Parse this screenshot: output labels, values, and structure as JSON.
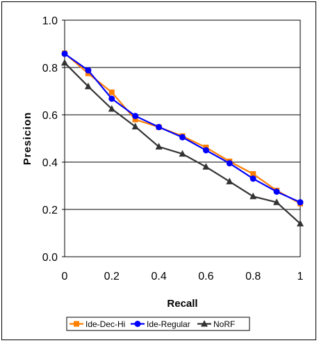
{
  "chart_data": {
    "type": "line",
    "title": "",
    "xlabel": "Recall",
    "ylabel": "Presicion",
    "x": [
      0,
      0.1,
      0.2,
      0.3,
      0.4,
      0.5,
      0.6,
      0.7,
      0.8,
      0.9,
      1
    ],
    "xlim": [
      0,
      1
    ],
    "ylim": [
      0,
      1
    ],
    "x_ticks": [
      "0",
      "0.2",
      "0.4",
      "0.6",
      "0.8",
      "1"
    ],
    "x_tick_values": [
      0,
      0.2,
      0.4,
      0.6,
      0.8,
      1
    ],
    "y_ticks": [
      "0.0",
      "0.2",
      "0.4",
      "0.6",
      "0.8",
      "1.0"
    ],
    "y_tick_values": [
      0,
      0.2,
      0.4,
      0.6,
      0.8,
      1
    ],
    "grid": "horizontal",
    "legend_position": "bottom",
    "series": [
      {
        "name": "Ide-Dec-Hi",
        "color": "#ff7f00",
        "marker": "square",
        "values": [
          0.86,
          0.775,
          0.695,
          0.58,
          0.548,
          0.51,
          0.462,
          0.403,
          0.35,
          0.28,
          0.225
        ]
      },
      {
        "name": "Ide-Regular",
        "color": "#0000ff",
        "marker": "circle",
        "values": [
          0.858,
          0.788,
          0.668,
          0.595,
          0.548,
          0.505,
          0.45,
          0.395,
          0.33,
          0.275,
          0.23
        ]
      },
      {
        "name": "NoRF",
        "color": "#333333",
        "marker": "triangle",
        "values": [
          0.82,
          0.72,
          0.625,
          0.55,
          0.465,
          0.435,
          0.38,
          0.318,
          0.255,
          0.23,
          0.14
        ]
      }
    ]
  }
}
